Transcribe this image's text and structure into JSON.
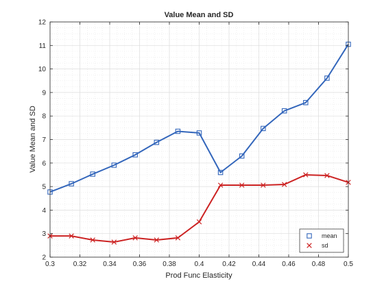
{
  "chart_data": {
    "type": "line",
    "title": "Value Mean and SD",
    "xlabel": "Prod Func Elasticity",
    "ylabel": "Value Mean and SD",
    "xlim": [
      0.3,
      0.5
    ],
    "ylim": [
      2,
      12
    ],
    "x_ticks": [
      "0.3",
      "0.32",
      "0.34",
      "0.36",
      "0.38",
      "0.4",
      "0.42",
      "0.44",
      "0.46",
      "0.48",
      "0.5"
    ],
    "y_ticks": [
      "2",
      "3",
      "4",
      "5",
      "6",
      "7",
      "8",
      "9",
      "10",
      "11",
      "12"
    ],
    "grid": "minor",
    "legend_position": "bottom-right",
    "x": [
      0.3,
      0.3143,
      0.3286,
      0.3429,
      0.3571,
      0.3714,
      0.3857,
      0.4,
      0.4143,
      0.4286,
      0.4429,
      0.4571,
      0.4714,
      0.4857,
      0.5
    ],
    "series": [
      {
        "name": "mean",
        "color": "#3366bb",
        "marker": "square",
        "values": [
          4.77,
          5.12,
          5.53,
          5.91,
          6.35,
          6.88,
          7.35,
          7.28,
          5.6,
          6.3,
          7.47,
          8.22,
          8.57,
          9.61,
          11.05
        ]
      },
      {
        "name": "sd",
        "color": "#cc2222",
        "marker": "x",
        "values": [
          2.9,
          2.9,
          2.73,
          2.64,
          2.82,
          2.73,
          2.82,
          3.5,
          5.06,
          5.06,
          5.06,
          5.09,
          5.5,
          5.47,
          5.18
        ]
      }
    ]
  }
}
